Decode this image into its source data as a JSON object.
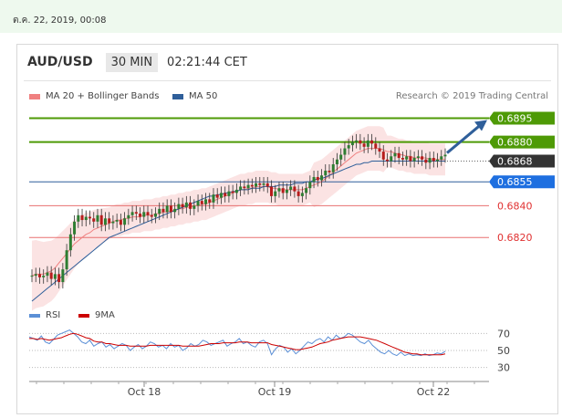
{
  "timestamp": "ต.ค. 22, 2019, 00:08",
  "header": {
    "symbol": "AUD/USD",
    "interval": "30 MIN",
    "time": "02:21:44 CET"
  },
  "legend": [
    {
      "label": "MA 20 + Bollinger Bands",
      "color": "#f08080"
    },
    {
      "label": "MA 50",
      "color": "#2f5f9a"
    }
  ],
  "research": "Research © 2019 Trading Central",
  "rsi_legend": [
    {
      "label": "RSI",
      "color": "#5b8fd6"
    },
    {
      "label": "9MA",
      "color": "#cc0000"
    }
  ],
  "chart_data": [
    {
      "type": "line",
      "subtype": "candlestick",
      "ylim": [
        0.678,
        0.6905
      ],
      "x_ticks": [
        "Oct 18",
        "Oct 19",
        "Oct 22"
      ],
      "levels": [
        {
          "value": 0.6895,
          "label": "0.6895",
          "style": "green-tag",
          "line": true
        },
        {
          "value": 0.688,
          "label": "0.6880",
          "style": "green-tag",
          "line": true
        },
        {
          "value": 0.6868,
          "label": "0.6868",
          "style": "dark-tag",
          "line": "dotted"
        },
        {
          "value": 0.6855,
          "label": "0.6855",
          "style": "blue-tag",
          "line": true
        },
        {
          "value": 0.684,
          "label": "0.6840",
          "style": "red-text",
          "line": true
        },
        {
          "value": 0.682,
          "label": "0.6820",
          "style": "red-text",
          "line": true
        }
      ],
      "close_series": [
        0.6796,
        0.6797,
        0.6795,
        0.6796,
        0.6798,
        0.6794,
        0.6797,
        0.6792,
        0.68,
        0.6812,
        0.6822,
        0.683,
        0.6834,
        0.6831,
        0.6833,
        0.6832,
        0.683,
        0.6834,
        0.6828,
        0.6832,
        0.6829,
        0.683,
        0.6831,
        0.6828,
        0.6832,
        0.6834,
        0.6836,
        0.6835,
        0.6833,
        0.6836,
        0.6834,
        0.6833,
        0.6835,
        0.6838,
        0.6836,
        0.684,
        0.6836,
        0.6838,
        0.6841,
        0.6839,
        0.6842,
        0.6838,
        0.684,
        0.6843,
        0.6841,
        0.6844,
        0.6842,
        0.6847,
        0.6845,
        0.6848,
        0.6846,
        0.6849,
        0.6848,
        0.685,
        0.6852,
        0.6851,
        0.6853,
        0.6852,
        0.6854,
        0.6853,
        0.6854,
        0.6852,
        0.6846,
        0.6849,
        0.6851,
        0.6848,
        0.685,
        0.6852,
        0.6849,
        0.6846,
        0.6848,
        0.6851,
        0.6855,
        0.6858,
        0.6856,
        0.6859,
        0.6862,
        0.6861,
        0.6866,
        0.6869,
        0.6872,
        0.6876,
        0.6878,
        0.688,
        0.6881,
        0.6879,
        0.6877,
        0.6881,
        0.6879,
        0.6876,
        0.6874,
        0.6869,
        0.6868,
        0.6871,
        0.6873,
        0.687,
        0.6869,
        0.6871,
        0.6868,
        0.687,
        0.6871,
        0.6869,
        0.6867,
        0.687,
        0.6868,
        0.6869,
        0.6871,
        0.6872
      ],
      "ma20": [
        0.6796,
        0.6797,
        0.6797,
        0.6797,
        0.6798,
        0.6799,
        0.6801,
        0.6804,
        0.6807,
        0.681,
        0.6813,
        0.6816,
        0.6818,
        0.682,
        0.6822,
        0.6823,
        0.6825,
        0.6826,
        0.6827,
        0.6828,
        0.6829,
        0.683,
        0.6831,
        0.6831,
        0.6832,
        0.6832,
        0.6833,
        0.6833,
        0.6833,
        0.6834,
        0.6834,
        0.6834,
        0.6835,
        0.6835,
        0.6836,
        0.6836,
        0.6837,
        0.6837,
        0.6838,
        0.6838,
        0.6839,
        0.6839,
        0.684,
        0.684,
        0.6841,
        0.6841,
        0.6842,
        0.6843,
        0.6844,
        0.6845,
        0.6846,
        0.6847,
        0.6848,
        0.6849,
        0.685,
        0.685,
        0.6851,
        0.6851,
        0.6852,
        0.6852,
        0.6852,
        0.6852,
        0.6851,
        0.6851,
        0.685,
        0.685,
        0.685,
        0.685,
        0.685,
        0.685,
        0.685,
        0.6851,
        0.6852,
        0.6853,
        0.6854,
        0.6855,
        0.6857,
        0.6859,
        0.6861,
        0.6863,
        0.6865,
        0.6867,
        0.6869,
        0.6871,
        0.6873,
        0.6874,
        0.6875,
        0.6876,
        0.6876,
        0.6876,
        0.6876,
        0.6875,
        0.6874,
        0.6874,
        0.6873,
        0.6872,
        0.6872,
        0.6871,
        0.6871,
        0.687,
        0.687,
        0.687,
        0.687,
        0.6869,
        0.6869,
        0.6869,
        0.6869,
        0.6869
      ],
      "ma50": [
        0.678,
        0.6782,
        0.6784,
        0.6786,
        0.6788,
        0.679,
        0.6792,
        0.6794,
        0.6796,
        0.6798,
        0.68,
        0.6802,
        0.6804,
        0.6806,
        0.6808,
        0.681,
        0.6812,
        0.6814,
        0.6816,
        0.6818,
        0.682,
        0.6821,
        0.6822,
        0.6823,
        0.6824,
        0.6825,
        0.6826,
        0.6827,
        0.6828,
        0.6829,
        0.683,
        0.6831,
        0.6832,
        0.6833,
        0.6834,
        0.6835,
        0.6836,
        0.6837,
        0.6838,
        0.6839,
        0.684,
        0.6841,
        0.6842,
        0.6843,
        0.6844,
        0.6845,
        0.6846,
        0.6846,
        0.6847,
        0.6847,
        0.6848,
        0.6848,
        0.6849,
        0.6849,
        0.685,
        0.685,
        0.685,
        0.6851,
        0.6851,
        0.6851,
        0.6852,
        0.6852,
        0.6852,
        0.6852,
        0.6853,
        0.6853,
        0.6853,
        0.6853,
        0.6854,
        0.6854,
        0.6854,
        0.6855,
        0.6855,
        0.6856,
        0.6857,
        0.6857,
        0.6858,
        0.6859,
        0.686,
        0.6861,
        0.6862,
        0.6863,
        0.6864,
        0.6865,
        0.6866,
        0.6866,
        0.6867,
        0.6867,
        0.6868,
        0.6868,
        0.6868,
        0.6868,
        0.6868,
        0.6868,
        0.6868,
        0.6868,
        0.6868,
        0.6868,
        0.6868,
        0.6868,
        0.6868,
        0.6868,
        0.6868,
        0.6868,
        0.6868,
        0.6868,
        0.6868,
        0.6868
      ],
      "forecast_target": 0.6895
    },
    {
      "type": "line",
      "name": "RSI",
      "ylim": [
        20,
        80
      ],
      "y_ticks": [
        70,
        50,
        30
      ],
      "rsi": [
        66,
        64,
        62,
        67,
        60,
        58,
        63,
        68,
        70,
        72,
        74,
        70,
        66,
        60,
        58,
        62,
        55,
        58,
        60,
        54,
        57,
        52,
        55,
        58,
        56,
        50,
        54,
        57,
        52,
        55,
        60,
        58,
        54,
        56,
        52,
        58,
        54,
        56,
        50,
        53,
        58,
        55,
        57,
        62,
        60,
        56,
        58,
        60,
        62,
        55,
        58,
        60,
        64,
        58,
        60,
        56,
        54,
        60,
        62,
        58,
        45,
        52,
        56,
        54,
        48,
        52,
        46,
        50,
        55,
        60,
        58,
        62,
        64,
        60,
        66,
        62,
        68,
        64,
        66,
        70,
        68,
        64,
        60,
        58,
        62,
        56,
        52,
        48,
        46,
        50,
        46,
        44,
        48,
        44,
        46,
        44,
        45,
        44,
        46,
        44,
        45,
        47,
        46,
        49
      ],
      "ma9": [
        64,
        64,
        63,
        64,
        63,
        62,
        63,
        64,
        65,
        67,
        69,
        70,
        69,
        67,
        65,
        64,
        61,
        60,
        60,
        58,
        58,
        57,
        56,
        56,
        56,
        55,
        55,
        55,
        55,
        55,
        56,
        56,
        56,
        56,
        56,
        56,
        56,
        56,
        55,
        55,
        55,
        55,
        55,
        56,
        57,
        58,
        58,
        58,
        59,
        59,
        59,
        59,
        60,
        60,
        60,
        59,
        59,
        59,
        59,
        59,
        57,
        56,
        55,
        54,
        53,
        52,
        51,
        51,
        52,
        53,
        54,
        56,
        58,
        59,
        60,
        62,
        63,
        64,
        65,
        66,
        66,
        66,
        66,
        65,
        64,
        63,
        62,
        60,
        58,
        56,
        54,
        52,
        50,
        48,
        47,
        46,
        46,
        45,
        45,
        45,
        45,
        45,
        45,
        46
      ]
    }
  ]
}
